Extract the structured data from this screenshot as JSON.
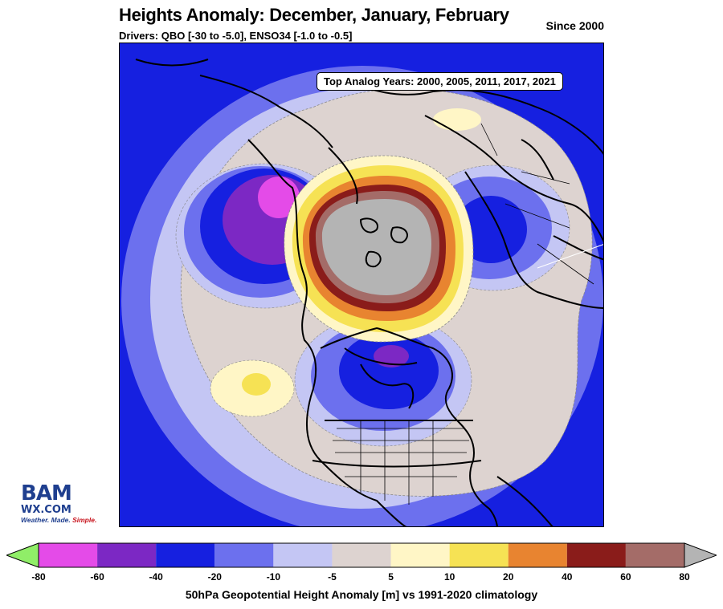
{
  "title": "Heights Anomaly: December, January, February",
  "subtitle": "Drivers: QBO [-30 to -5.0], ENSO34 [-1.0 to -0.5]",
  "since": "Since 2000",
  "analog_box": "Top Analog Years: 2000, 2005, 2011, 2017, 2021",
  "logo": {
    "top": "BAM",
    "mid": "WX.COM",
    "tag_a": "Weather. Made. ",
    "tag_b": "Simple."
  },
  "colorbar": {
    "label": "50hPa Geopotential Height Anomaly [m] vs 1991-2020 climatology",
    "ticks": [
      "-80",
      "-60",
      "-40",
      "-20",
      "-10",
      "-5",
      "5",
      "10",
      "20",
      "40",
      "60",
      "80"
    ],
    "colors": [
      "#ffa0ff",
      "#e44be8",
      "#7c28c4",
      "#1620e0",
      "#6c70ee",
      "#c4c6f4",
      "#ddd3d0",
      "#fff6c6",
      "#f6e254",
      "#e88430",
      "#8a1c1a",
      "#a46c68",
      "#b4b4b4"
    ]
  },
  "map": {
    "projection": "north polar stereographic",
    "field_colors": {
      "ocean_blue": "#1620e0",
      "light_blue": "#c4c6f4",
      "mid_blue": "#6c70ee",
      "purple": "#7c28c4",
      "magenta": "#e44be8",
      "neutral": "#ddd3d0",
      "pale_yellow": "#fff6c6",
      "yellow": "#f6e254",
      "orange": "#e88430",
      "dark_red": "#8a1c1a",
      "rose": "#a46c68",
      "grey": "#b4b4b4"
    }
  }
}
